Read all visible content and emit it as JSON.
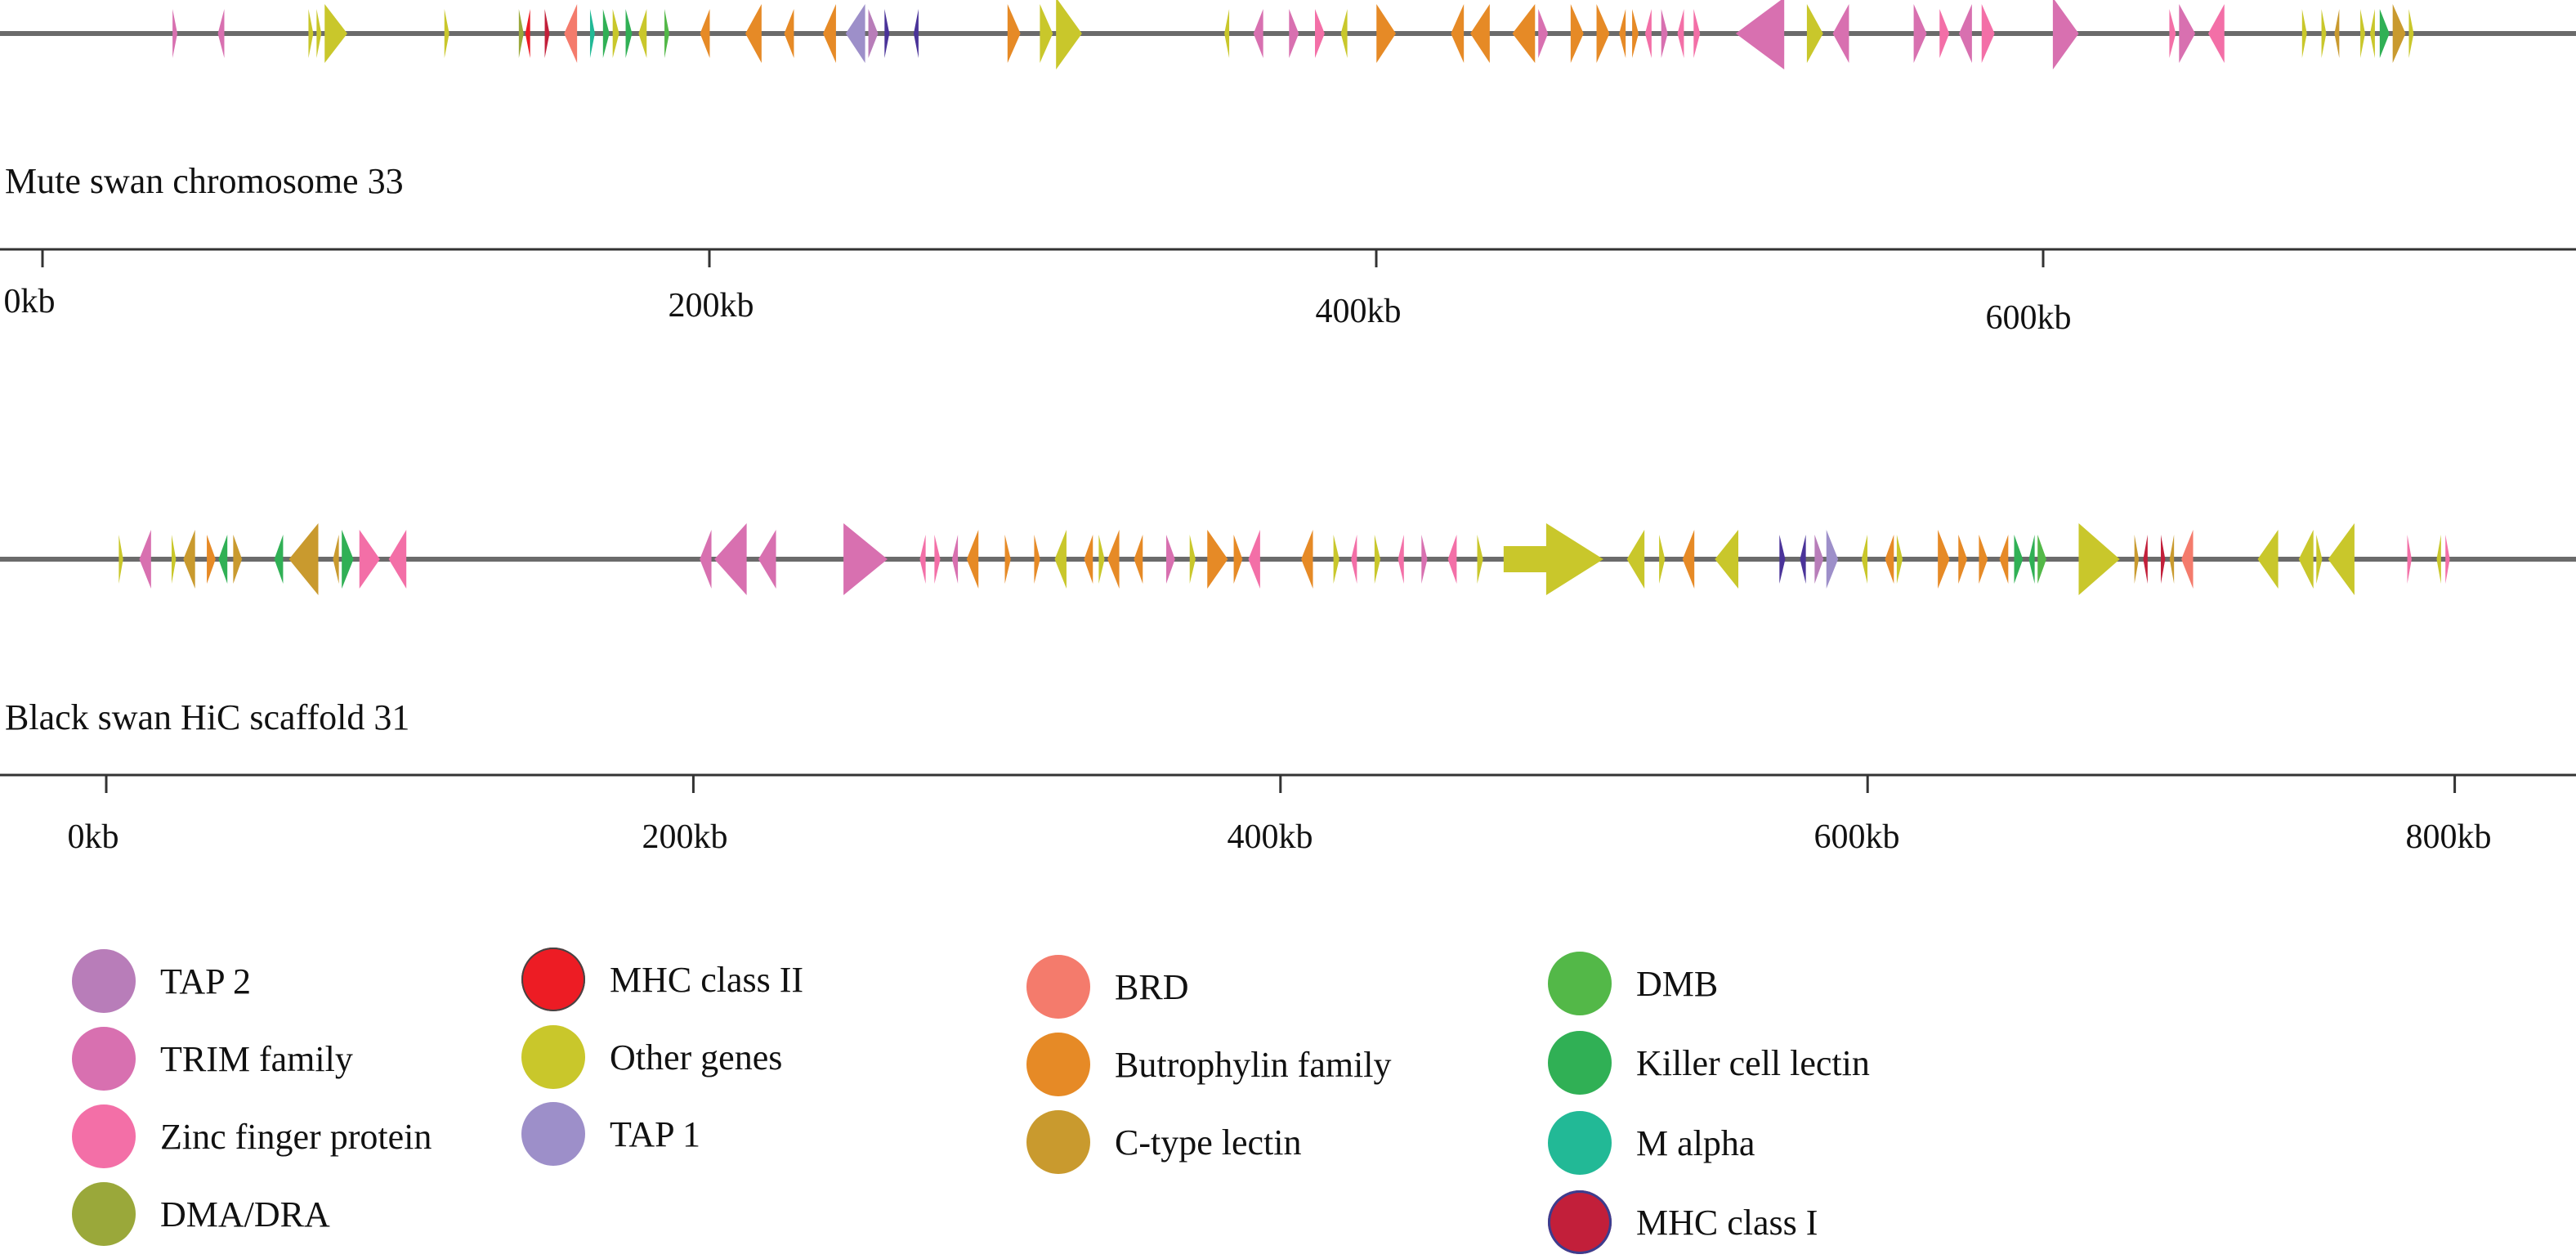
{
  "tracks": [
    {
      "id": "mute",
      "label": "Mute swan chromosome 33",
      "axis_max_kb": 760,
      "ticks": [
        {
          "value": 0,
          "label": "0kb"
        },
        {
          "value": 200,
          "label": "200kb"
        },
        {
          "value": 400,
          "label": "400kb"
        },
        {
          "value": 600,
          "label": "600kb"
        }
      ],
      "genes": [
        {
          "start": 22.0,
          "end": 23.5,
          "strand": "+",
          "category": "trim"
        },
        {
          "start": 36.0,
          "end": 38.0,
          "strand": "-",
          "category": "trim"
        },
        {
          "start": 64.0,
          "end": 65.5,
          "strand": "+",
          "category": "other"
        },
        {
          "start": 66.5,
          "end": 68.0,
          "strand": "+",
          "category": "other"
        },
        {
          "start": 69.0,
          "end": 76.0,
          "strand": "+",
          "category": "other"
        },
        {
          "start": 106.0,
          "end": 107.5,
          "strand": "+",
          "category": "other"
        },
        {
          "start": 129.0,
          "end": 130.5,
          "strand": "+",
          "category": "dma"
        },
        {
          "start": 131.0,
          "end": 132.5,
          "strand": "-",
          "category": "mhc2"
        },
        {
          "start": 137.0,
          "end": 138.5,
          "strand": "+",
          "category": "mhc1"
        },
        {
          "start": 143.0,
          "end": 147.0,
          "strand": "-",
          "category": "brd"
        },
        {
          "start": 151.0,
          "end": 152.5,
          "strand": "+",
          "category": "malpha"
        },
        {
          "start": 155.0,
          "end": 157.0,
          "strand": "+",
          "category": "killer"
        },
        {
          "start": 158.0,
          "end": 160.0,
          "strand": "+",
          "category": "other"
        },
        {
          "start": 162.0,
          "end": 164.0,
          "strand": "+",
          "category": "killer"
        },
        {
          "start": 166.0,
          "end": 168.5,
          "strand": "-",
          "category": "other"
        },
        {
          "start": 174.0,
          "end": 175.5,
          "strand": "+",
          "category": "dmb"
        },
        {
          "start": 185.0,
          "end": 188.0,
          "strand": "-",
          "category": "butrophylin"
        },
        {
          "start": 199.0,
          "end": 204.0,
          "strand": "-",
          "category": "butrophylin"
        },
        {
          "start": 211.0,
          "end": 214.0,
          "strand": "-",
          "category": "butrophylin"
        },
        {
          "start": 223.0,
          "end": 227.0,
          "strand": "-",
          "category": "butrophylin"
        },
        {
          "start": 230.0,
          "end": 236.0,
          "strand": "-",
          "category": "tap1"
        },
        {
          "start": 237.0,
          "end": 240.0,
          "strand": "+",
          "category": "tap2"
        },
        {
          "start": 242.0,
          "end": 243.5,
          "strand": "+",
          "category": "mhc2ind"
        },
        {
          "start": 251.0,
          "end": 252.5,
          "strand": "-",
          "category": "mhc2ind"
        },
        {
          "start": 280.0,
          "end": 284.0,
          "strand": "+",
          "category": "butrophylin"
        },
        {
          "start": 290.0,
          "end": 294.0,
          "strand": "+",
          "category": "other"
        },
        {
          "start": 295.0,
          "end": 303.0,
          "strand": "+",
          "category": "other"
        },
        {
          "start": 347.0,
          "end": 348.5,
          "strand": "-",
          "category": "other"
        },
        {
          "start": 356.0,
          "end": 359.0,
          "strand": "-",
          "category": "trim"
        },
        {
          "start": 367.0,
          "end": 370.0,
          "strand": "+",
          "category": "trim"
        },
        {
          "start": 375.0,
          "end": 378.0,
          "strand": "+",
          "category": "zinc"
        },
        {
          "start": 383.0,
          "end": 385.0,
          "strand": "-",
          "category": "other"
        },
        {
          "start": 394.0,
          "end": 400.0,
          "strand": "+",
          "category": "butrophylin"
        },
        {
          "start": 417.0,
          "end": 421.0,
          "strand": "-",
          "category": "butrophylin"
        },
        {
          "start": 423.0,
          "end": 429.0,
          "strand": "-",
          "category": "butrophylin"
        },
        {
          "start": 436.0,
          "end": 443.0,
          "strand": "-",
          "category": "butrophylin"
        },
        {
          "start": 444.0,
          "end": 447.0,
          "strand": "+",
          "category": "trim"
        },
        {
          "start": 454.0,
          "end": 458.0,
          "strand": "+",
          "category": "butrophylin"
        },
        {
          "start": 462.0,
          "end": 466.0,
          "strand": "+",
          "category": "butrophylin"
        },
        {
          "start": 469.0,
          "end": 471.0,
          "strand": "-",
          "category": "butrophylin"
        },
        {
          "start": 473.0,
          "end": 475.0,
          "strand": "+",
          "category": "butrophylin"
        },
        {
          "start": 477.0,
          "end": 479.0,
          "strand": "-",
          "category": "zinc"
        },
        {
          "start": 482.0,
          "end": 484.0,
          "strand": "+",
          "category": "trim"
        },
        {
          "start": 487.0,
          "end": 489.0,
          "strand": "-",
          "category": "zinc"
        },
        {
          "start": 492.0,
          "end": 494.0,
          "strand": "+",
          "category": "zinc"
        },
        {
          "start": 505.0,
          "end": 520.0,
          "strand": "-",
          "category": "trim"
        },
        {
          "start": 527.0,
          "end": 532.0,
          "strand": "+",
          "category": "other"
        },
        {
          "start": 535.0,
          "end": 540.0,
          "strand": "-",
          "category": "trim"
        },
        {
          "start": 560.0,
          "end": 564.0,
          "strand": "+",
          "category": "trim"
        },
        {
          "start": 568.0,
          "end": 571.0,
          "strand": "+",
          "category": "zinc"
        },
        {
          "start": 574.0,
          "end": 578.0,
          "strand": "-",
          "category": "trim"
        },
        {
          "start": 581.0,
          "end": 585.0,
          "strand": "+",
          "category": "zinc"
        },
        {
          "start": 603.0,
          "end": 611.0,
          "strand": "+",
          "category": "trim"
        },
        {
          "start": 639.0,
          "end": 641.0,
          "strand": "+",
          "category": "zinc"
        },
        {
          "start": 642.0,
          "end": 647.0,
          "strand": "+",
          "category": "trim"
        },
        {
          "start": 651.0,
          "end": 656.0,
          "strand": "-",
          "category": "zinc"
        },
        {
          "start": 680.0,
          "end": 681.5,
          "strand": "+",
          "category": "other"
        },
        {
          "start": 686.0,
          "end": 687.5,
          "strand": "+",
          "category": "other"
        },
        {
          "start": 690.0,
          "end": 691.5,
          "strand": "-",
          "category": "clectin"
        },
        {
          "start": 698.0,
          "end": 699.5,
          "strand": "+",
          "category": "other"
        },
        {
          "start": 701.0,
          "end": 702.5,
          "strand": "-",
          "category": "other"
        },
        {
          "start": 704.0,
          "end": 707.0,
          "strand": "+",
          "category": "killer"
        },
        {
          "start": 708.0,
          "end": 712.0,
          "strand": "+",
          "category": "clectin"
        },
        {
          "start": 713.0,
          "end": 714.5,
          "strand": "+",
          "category": "other"
        }
      ]
    },
    {
      "id": "black",
      "label": "Black swan HiC scaffold 31",
      "axis_max_kb": 830,
      "ticks": [
        {
          "value": 0,
          "label": "0kb"
        },
        {
          "value": 200,
          "label": "200kb"
        },
        {
          "value": 400,
          "label": "400kb"
        },
        {
          "value": 600,
          "label": "600kb"
        },
        {
          "value": 800,
          "label": "800kb"
        }
      ],
      "genes": [
        {
          "start": 4.0,
          "end": 5.5,
          "strand": "+",
          "category": "other"
        },
        {
          "start": 11.0,
          "end": 15.0,
          "strand": "-",
          "category": "trim"
        },
        {
          "start": 22.0,
          "end": 23.5,
          "strand": "+",
          "category": "other"
        },
        {
          "start": 26.0,
          "end": 30.0,
          "strand": "-",
          "category": "clectin"
        },
        {
          "start": 34.0,
          "end": 37.0,
          "strand": "+",
          "category": "butrophylin"
        },
        {
          "start": 38.0,
          "end": 41.0,
          "strand": "-",
          "category": "killer"
        },
        {
          "start": 43.0,
          "end": 46.0,
          "strand": "+",
          "category": "clectin"
        },
        {
          "start": 57.0,
          "end": 60.0,
          "strand": "-",
          "category": "killer"
        },
        {
          "start": 62.0,
          "end": 72.0,
          "strand": "-",
          "category": "clectin"
        },
        {
          "start": 77.0,
          "end": 79.0,
          "strand": "-",
          "category": "clectin"
        },
        {
          "start": 80.0,
          "end": 84.0,
          "strand": "+",
          "category": "killer"
        },
        {
          "start": 86.0,
          "end": 93.0,
          "strand": "+",
          "category": "zinc"
        },
        {
          "start": 96.0,
          "end": 102.0,
          "strand": "-",
          "category": "zinc"
        },
        {
          "start": 202.0,
          "end": 206.0,
          "strand": "-",
          "category": "trim"
        },
        {
          "start": 207.0,
          "end": 218.0,
          "strand": "-",
          "category": "trim"
        },
        {
          "start": 222.0,
          "end": 228.0,
          "strand": "-",
          "category": "trim"
        },
        {
          "start": 251.0,
          "end": 266.0,
          "strand": "+",
          "category": "trim"
        },
        {
          "start": 277.0,
          "end": 279.0,
          "strand": "-",
          "category": "zinc"
        },
        {
          "start": 282.0,
          "end": 284.0,
          "strand": "+",
          "category": "zinc"
        },
        {
          "start": 288.0,
          "end": 290.0,
          "strand": "-",
          "category": "trim"
        },
        {
          "start": 293.0,
          "end": 297.0,
          "strand": "-",
          "category": "butrophylin"
        },
        {
          "start": 306.0,
          "end": 308.0,
          "strand": "+",
          "category": "butrophylin"
        },
        {
          "start": 316.0,
          "end": 318.0,
          "strand": "+",
          "category": "butrophylin"
        },
        {
          "start": 323.0,
          "end": 327.0,
          "strand": "-",
          "category": "other"
        },
        {
          "start": 333.0,
          "end": 336.0,
          "strand": "-",
          "category": "butrophylin"
        },
        {
          "start": 338.0,
          "end": 340.0,
          "strand": "+",
          "category": "other"
        },
        {
          "start": 341.0,
          "end": 345.0,
          "strand": "-",
          "category": "butrophylin"
        },
        {
          "start": 350.0,
          "end": 353.0,
          "strand": "-",
          "category": "butrophylin"
        },
        {
          "start": 361.0,
          "end": 364.0,
          "strand": "+",
          "category": "trim"
        },
        {
          "start": 369.0,
          "end": 371.0,
          "strand": "+",
          "category": "other"
        },
        {
          "start": 375.0,
          "end": 382.0,
          "strand": "+",
          "category": "butrophylin"
        },
        {
          "start": 384.0,
          "end": 387.0,
          "strand": "+",
          "category": "butrophylin"
        },
        {
          "start": 389.0,
          "end": 393.0,
          "strand": "-",
          "category": "zinc"
        },
        {
          "start": 407.0,
          "end": 411.0,
          "strand": "-",
          "category": "butrophylin"
        },
        {
          "start": 418.0,
          "end": 420.0,
          "strand": "+",
          "category": "other"
        },
        {
          "start": 424.0,
          "end": 426.0,
          "strand": "-",
          "category": "zinc"
        },
        {
          "start": 432.0,
          "end": 434.0,
          "strand": "+",
          "category": "other"
        },
        {
          "start": 440.0,
          "end": 442.0,
          "strand": "-",
          "category": "zinc"
        },
        {
          "start": 448.0,
          "end": 450.0,
          "strand": "+",
          "category": "trim"
        },
        {
          "start": 457.0,
          "end": 460.0,
          "strand": "-",
          "category": "zinc"
        },
        {
          "start": 467.0,
          "end": 469.0,
          "strand": "+",
          "category": "other"
        },
        {
          "start": 476.0,
          "end": 510.0,
          "strand": "+",
          "category": "other"
        },
        {
          "start": 518.0,
          "end": 524.0,
          "strand": "-",
          "category": "other"
        },
        {
          "start": 529.0,
          "end": 531.0,
          "strand": "+",
          "category": "other"
        },
        {
          "start": 537.0,
          "end": 541.0,
          "strand": "-",
          "category": "butrophylin"
        },
        {
          "start": 548.0,
          "end": 556.0,
          "strand": "-",
          "category": "other"
        },
        {
          "start": 570.0,
          "end": 572.0,
          "strand": "+",
          "category": "mhc2ind"
        },
        {
          "start": 577.0,
          "end": 579.0,
          "strand": "-",
          "category": "mhc2ind"
        },
        {
          "start": 582.0,
          "end": 585.0,
          "strand": "+",
          "category": "tap2"
        },
        {
          "start": 586.0,
          "end": 590.0,
          "strand": "+",
          "category": "tap1"
        },
        {
          "start": 598.0,
          "end": 600.0,
          "strand": "-",
          "category": "other"
        },
        {
          "start": 606.0,
          "end": 609.0,
          "strand": "-",
          "category": "butrophylin"
        },
        {
          "start": 610.0,
          "end": 612.0,
          "strand": "+",
          "category": "other"
        },
        {
          "start": 624.0,
          "end": 628.0,
          "strand": "+",
          "category": "butrophylin"
        },
        {
          "start": 631.0,
          "end": 634.0,
          "strand": "+",
          "category": "butrophylin"
        },
        {
          "start": 638.0,
          "end": 641.0,
          "strand": "+",
          "category": "butrophylin"
        },
        {
          "start": 645.0,
          "end": 648.0,
          "strand": "-",
          "category": "butrophylin"
        },
        {
          "start": 650.0,
          "end": 653.0,
          "strand": "+",
          "category": "killer"
        },
        {
          "start": 655.0,
          "end": 657.0,
          "strand": "-",
          "category": "killer"
        },
        {
          "start": 658.0,
          "end": 661.0,
          "strand": "+",
          "category": "dmb"
        },
        {
          "start": 672.0,
          "end": 686.0,
          "strand": "+",
          "category": "other"
        },
        {
          "start": 691.0,
          "end": 692.5,
          "strand": "+",
          "category": "clectin"
        },
        {
          "start": 694.0,
          "end": 695.5,
          "strand": "-",
          "category": "mhc1"
        },
        {
          "start": 700.0,
          "end": 701.5,
          "strand": "+",
          "category": "mhc1"
        },
        {
          "start": 703.0,
          "end": 704.5,
          "strand": "-",
          "category": "clectin"
        },
        {
          "start": 707.0,
          "end": 711.0,
          "strand": "-",
          "category": "brd"
        },
        {
          "start": 733.0,
          "end": 740.0,
          "strand": "-",
          "category": "other"
        },
        {
          "start": 747.0,
          "end": 752.0,
          "strand": "-",
          "category": "other"
        },
        {
          "start": 753.0,
          "end": 755.0,
          "strand": "+",
          "category": "other"
        },
        {
          "start": 757.0,
          "end": 766.0,
          "strand": "-",
          "category": "other"
        },
        {
          "start": 784.0,
          "end": 785.5,
          "strand": "+",
          "category": "zinc"
        },
        {
          "start": 794.0,
          "end": 795.5,
          "strand": "-",
          "category": "other"
        },
        {
          "start": 797.0,
          "end": 798.5,
          "strand": "+",
          "category": "zinc"
        }
      ]
    }
  ],
  "legend": [
    {
      "key": "tap2",
      "label": "TAP 2",
      "color": "#b87db9"
    },
    {
      "key": "trim",
      "label": "TRIM family",
      "color": "#d870b0"
    },
    {
      "key": "zinc",
      "label": "Zinc finger protein",
      "color": "#f36fa7"
    },
    {
      "key": "dma",
      "label": "DMA/DRA",
      "color": "#9aa83a"
    },
    {
      "key": "mhc2",
      "label": "MHC class II",
      "color": "#ed1c24"
    },
    {
      "key": "other",
      "label": "Other genes",
      "color": "#c9c72b"
    },
    {
      "key": "tap1",
      "label": "TAP 1",
      "color": "#9d8fc9"
    },
    {
      "key": "brd",
      "label": "BRD",
      "color": "#f47b6c"
    },
    {
      "key": "butrophylin",
      "label": "Butrophylin family",
      "color": "#e68a26"
    },
    {
      "key": "clectin",
      "label": "C-type lectin",
      "color": "#c99a2e"
    },
    {
      "key": "dmb",
      "label": "DMB",
      "color": "#53b848"
    },
    {
      "key": "killer",
      "label": "Killer cell lectin",
      "color": "#30b055"
    },
    {
      "key": "malpha",
      "label": "M alpha",
      "color": "#22b996"
    },
    {
      "key": "mhc1",
      "label": "MHC class I",
      "color": "#c21f3a"
    }
  ],
  "extra_colors": {
    "mhc2ind": "#4a3399",
    "track_line": "#6b6b6b",
    "axis": "#333333"
  }
}
